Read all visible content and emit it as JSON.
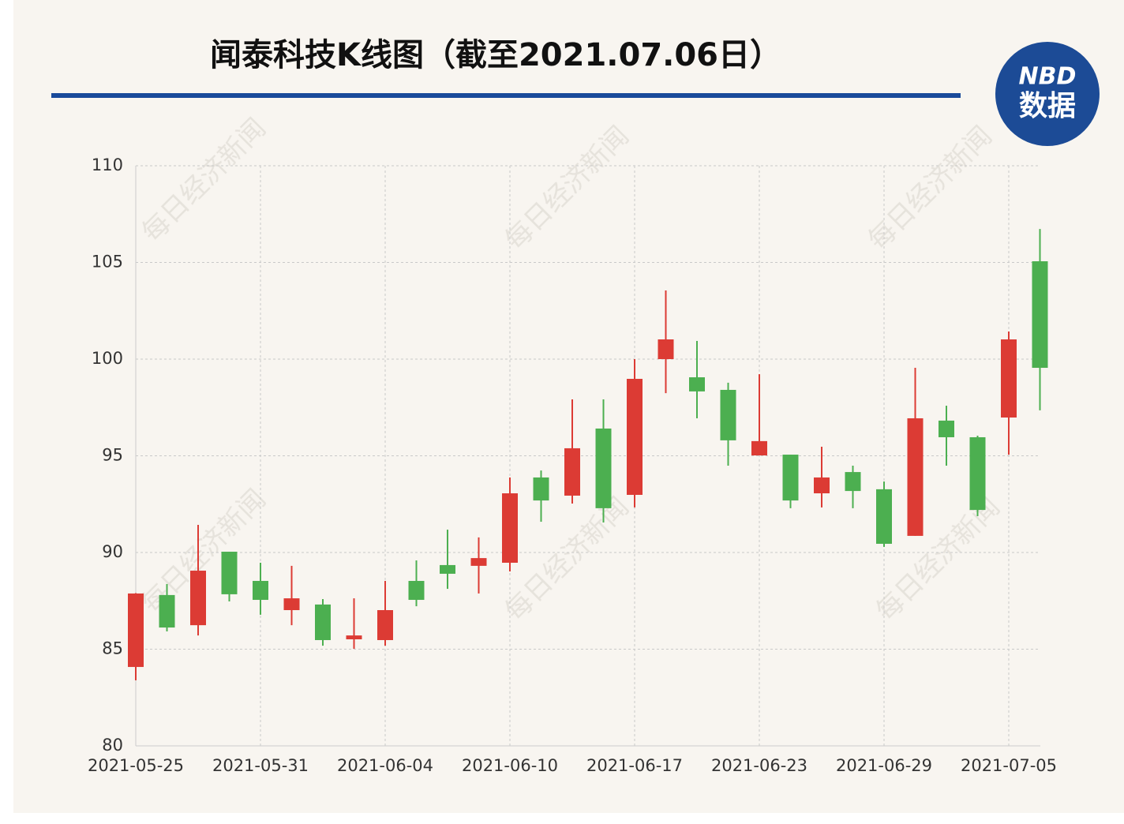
{
  "chart_data": {
    "type": "candlestick",
    "title": "闻泰科技K线图（截至2021.07.06日）",
    "logo": {
      "top": "NBD",
      "bottom": "数据"
    },
    "watermark": "每日经济新闻",
    "categories": [
      "2021-05-25",
      null,
      null,
      null,
      "2021-05-31",
      null,
      null,
      null,
      "2021-06-04",
      null,
      null,
      null,
      "2021-06-10",
      null,
      null,
      null,
      "2021-06-17",
      null,
      null,
      null,
      "2021-06-23",
      null,
      null,
      null,
      "2021-06-29",
      null,
      null,
      null,
      "2021-07-05",
      null
    ],
    "open": [
      84.08,
      87.8,
      86.24,
      90.04,
      88.53,
      87.02,
      87.31,
      85.51,
      85.47,
      88.53,
      89.35,
      89.31,
      89.47,
      93.88,
      92.94,
      96.41,
      92.98,
      100.0,
      99.06,
      98.41,
      95.02,
      95.06,
      93.06,
      94.16,
      93.27,
      90.86,
      96.82,
      95.96,
      96.98,
      105.06
    ],
    "high": [
      87.9,
      88.37,
      91.43,
      90.04,
      89.47,
      89.31,
      87.59,
      87.63,
      88.53,
      89.59,
      91.18,
      90.78,
      93.88,
      94.24,
      97.92,
      97.92,
      100.0,
      103.55,
      100.94,
      98.78,
      99.22,
      95.06,
      95.47,
      94.49,
      93.67,
      99.55,
      97.59,
      96.04,
      101.43,
      106.73
    ],
    "low": [
      83.39,
      85.92,
      85.71,
      87.47,
      86.78,
      86.24,
      85.18,
      85.02,
      85.18,
      87.22,
      88.12,
      87.88,
      89.02,
      91.59,
      92.53,
      91.55,
      92.33,
      98.24,
      96.94,
      94.49,
      95.02,
      92.29,
      92.33,
      92.29,
      90.29,
      90.86,
      94.49,
      91.88,
      95.06,
      97.35
    ],
    "close": [
      87.88,
      86.12,
      89.06,
      87.84,
      87.55,
      87.63,
      85.47,
      85.71,
      87.02,
      87.55,
      88.9,
      89.71,
      93.06,
      92.69,
      95.39,
      92.29,
      98.98,
      101.02,
      98.33,
      95.8,
      95.76,
      92.69,
      93.88,
      93.18,
      90.45,
      96.94,
      95.96,
      92.2,
      101.02,
      99.55
    ],
    "up_color": "#dc3b34",
    "down_color": "#4caf50",
    "ylim": [
      80,
      110
    ],
    "yticks": [
      80,
      85,
      90,
      95,
      100,
      105,
      110
    ],
    "grid": true
  }
}
